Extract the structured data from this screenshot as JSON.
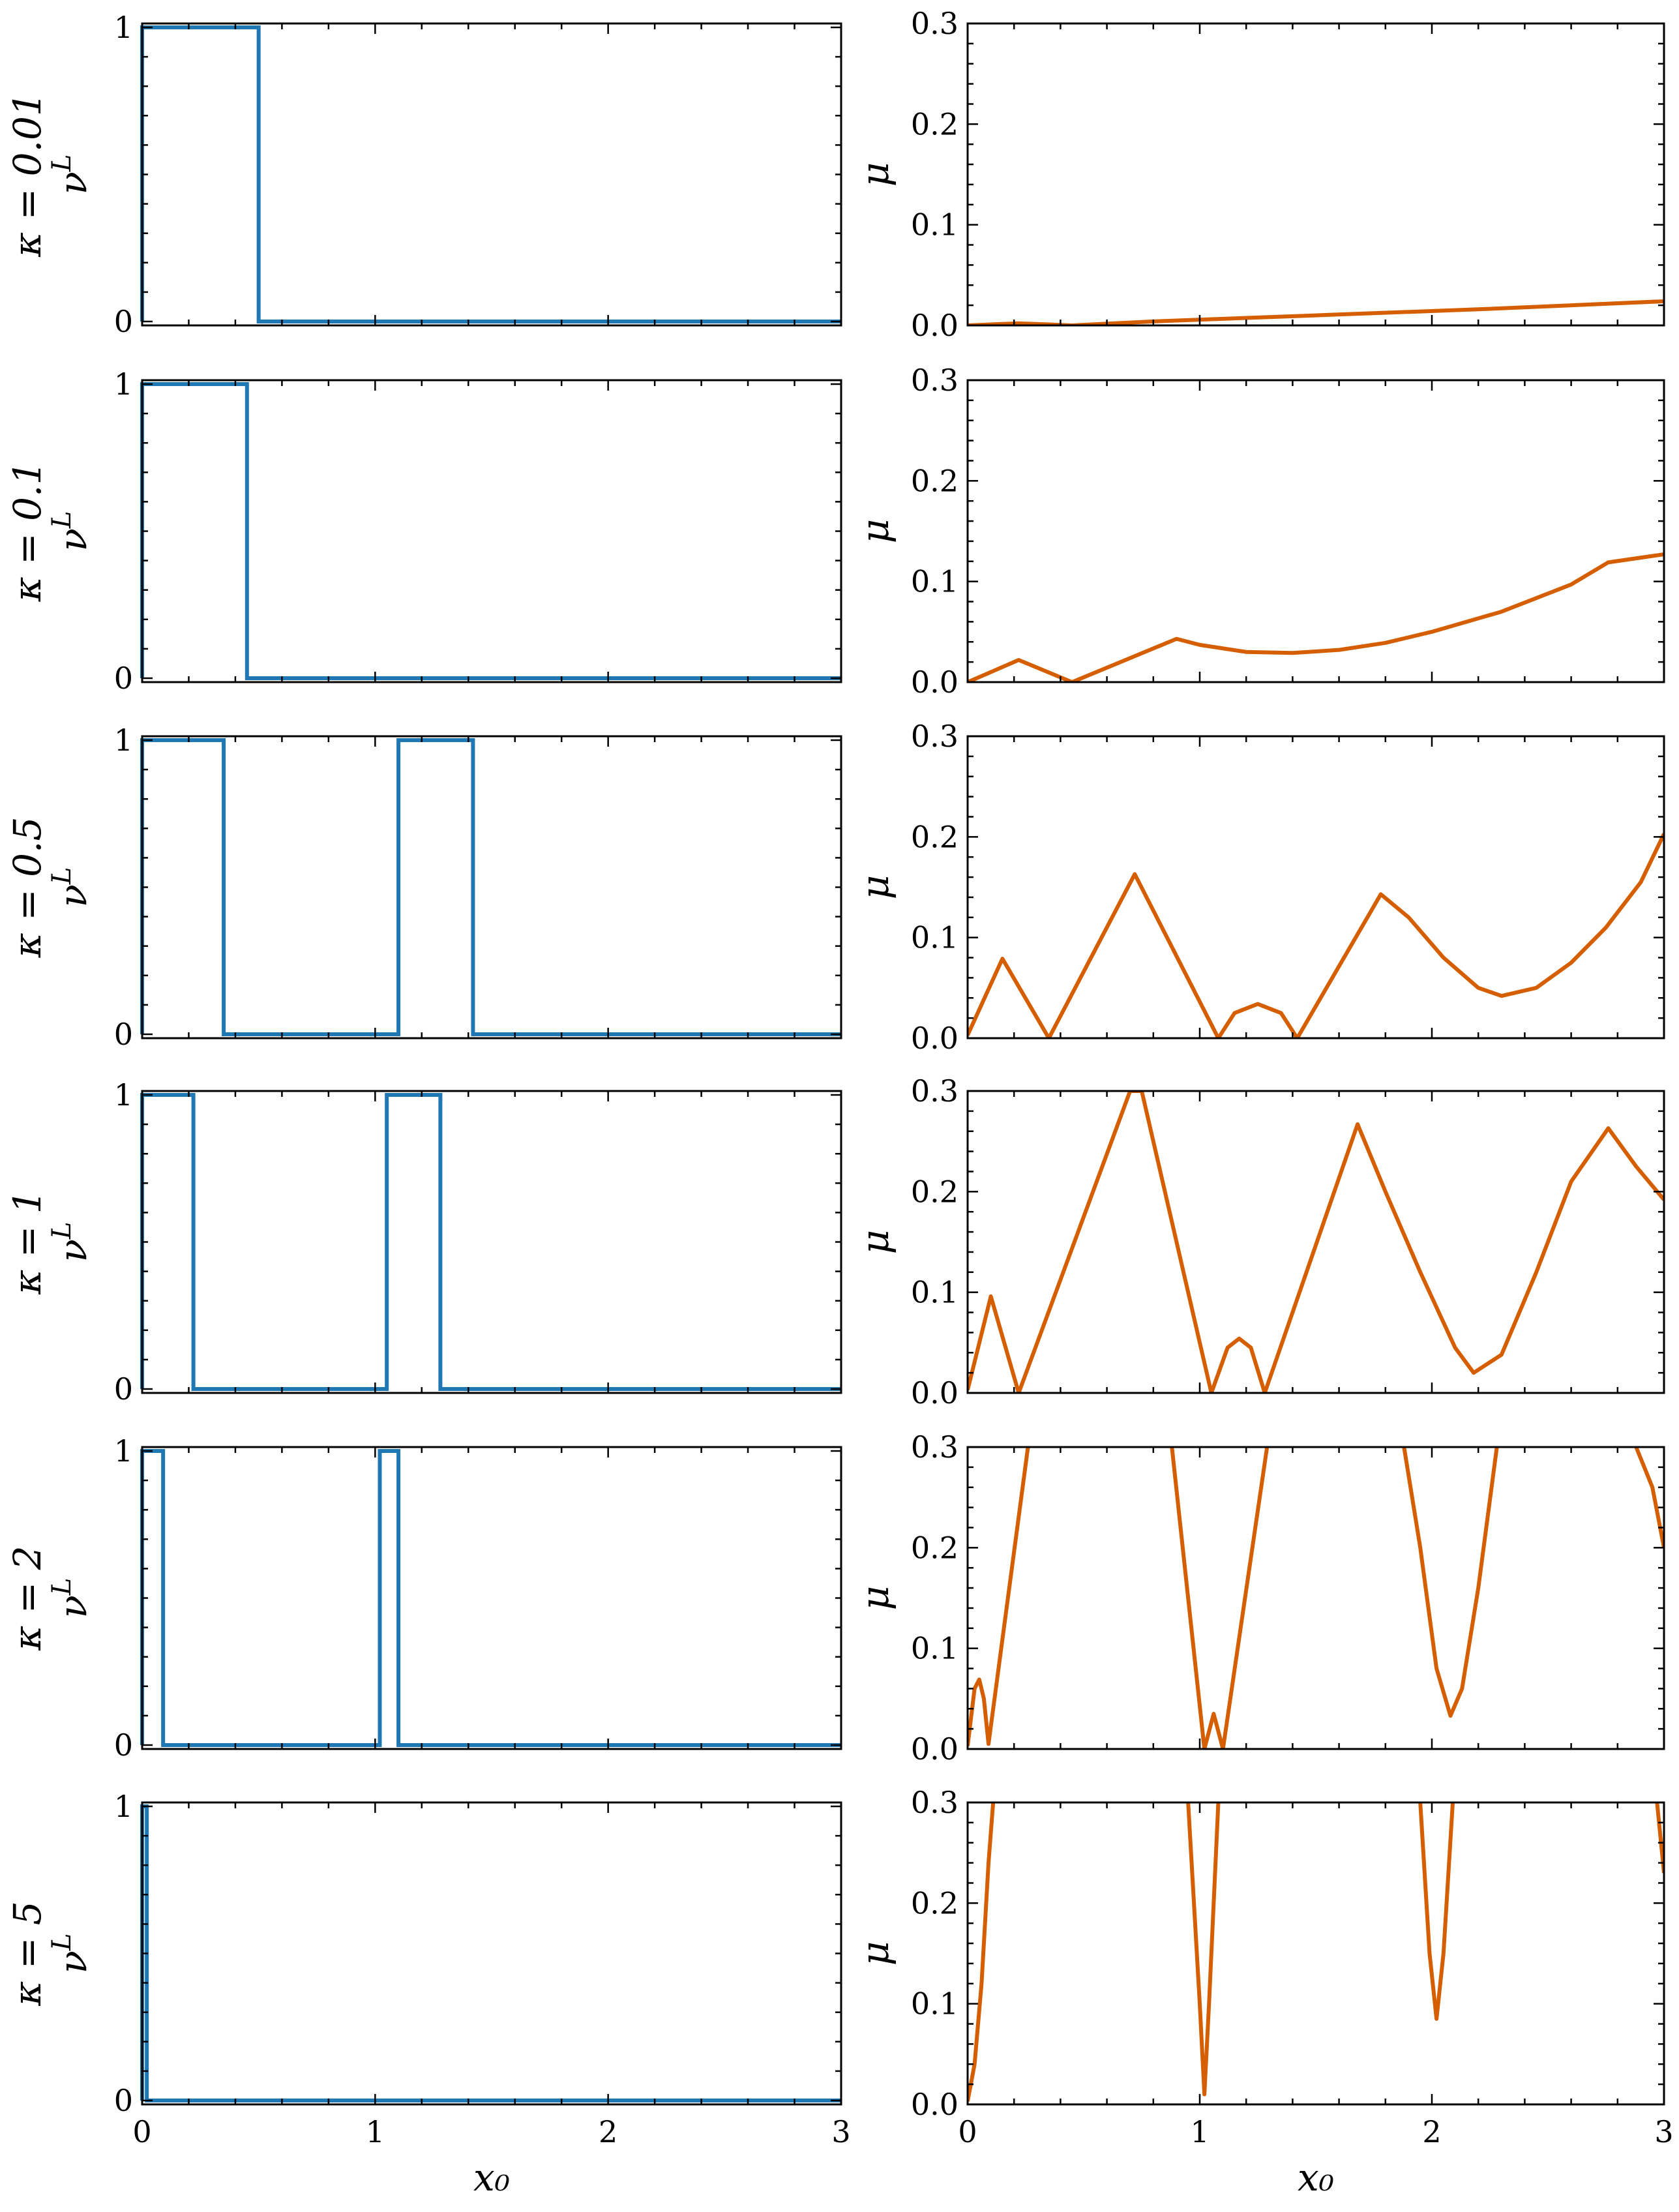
{
  "chart_data": {
    "type": "line",
    "xlabel": "x₀",
    "left_ylabel_symbol": "ν",
    "left_ylabel_superscript": "L",
    "right_ylabel": "μ",
    "xlim": [
      0,
      3
    ],
    "x_ticks": [
      "0",
      "1",
      "2",
      "3"
    ],
    "nu_ylim": [
      0,
      1
    ],
    "nu_ticks": [
      "0",
      "1"
    ],
    "mu_ylim": [
      0,
      0.3
    ],
    "mu_ticks": [
      "0.0",
      "0.1",
      "0.2",
      "0.3"
    ],
    "colors": {
      "nu": "#1f77b4",
      "mu": "#d55e00"
    },
    "rows": [
      {
        "kappa_label": "κ = 0.01",
        "nu_steps": [
          [
            0,
            0
          ],
          [
            0,
            1
          ],
          [
            0.5,
            1
          ],
          [
            0.5,
            0
          ],
          [
            3,
            0
          ]
        ],
        "mu_points": [
          [
            0,
            0
          ],
          [
            0.1,
            0.001
          ],
          [
            0.22,
            0.002
          ],
          [
            0.35,
            0.001
          ],
          [
            0.45,
            0
          ],
          [
            0.8,
            0.004
          ],
          [
            1.5,
            0.01
          ],
          [
            2.2,
            0.016
          ],
          [
            3,
            0.024
          ]
        ]
      },
      {
        "kappa_label": "κ = 0.1",
        "nu_steps": [
          [
            0,
            0
          ],
          [
            0,
            1
          ],
          [
            0.45,
            1
          ],
          [
            0.45,
            0
          ],
          [
            3,
            0
          ]
        ],
        "mu_points": [
          [
            0,
            0
          ],
          [
            0.22,
            0.022
          ],
          [
            0.45,
            0
          ],
          [
            0.9,
            0.043
          ],
          [
            1.0,
            0.037
          ],
          [
            1.2,
            0.03
          ],
          [
            1.4,
            0.029
          ],
          [
            1.6,
            0.032
          ],
          [
            1.8,
            0.039
          ],
          [
            2.0,
            0.05
          ],
          [
            2.3,
            0.07
          ],
          [
            2.6,
            0.097
          ],
          [
            2.76,
            0.119
          ],
          [
            3,
            0.127
          ]
        ]
      },
      {
        "kappa_label": "κ = 0.5",
        "nu_steps": [
          [
            0,
            0
          ],
          [
            0,
            1
          ],
          [
            0.35,
            1
          ],
          [
            0.35,
            0
          ],
          [
            1.1,
            0
          ],
          [
            1.1,
            1
          ],
          [
            1.42,
            1
          ],
          [
            1.42,
            0
          ],
          [
            3,
            0
          ]
        ],
        "mu_points": [
          [
            0,
            0.003
          ],
          [
            0.15,
            0.079
          ],
          [
            0.35,
            0
          ],
          [
            0.72,
            0.163
          ],
          [
            1.08,
            0
          ],
          [
            1.15,
            0.025
          ],
          [
            1.25,
            0.034
          ],
          [
            1.35,
            0.025
          ],
          [
            1.42,
            0
          ],
          [
            1.78,
            0.143
          ],
          [
            1.9,
            0.12
          ],
          [
            2.05,
            0.08
          ],
          [
            2.2,
            0.05
          ],
          [
            2.3,
            0.042
          ],
          [
            2.45,
            0.05
          ],
          [
            2.6,
            0.075
          ],
          [
            2.75,
            0.11
          ],
          [
            2.9,
            0.155
          ],
          [
            3,
            0.203
          ]
        ]
      },
      {
        "kappa_label": "κ = 1",
        "nu_steps": [
          [
            0,
            0
          ],
          [
            0,
            1
          ],
          [
            0.22,
            1
          ],
          [
            0.22,
            0
          ],
          [
            1.05,
            0
          ],
          [
            1.05,
            1
          ],
          [
            1.28,
            1
          ],
          [
            1.28,
            0
          ],
          [
            3,
            0
          ]
        ],
        "mu_points": [
          [
            0,
            0.003
          ],
          [
            0.1,
            0.096
          ],
          [
            0.22,
            0
          ],
          [
            0.7,
            0.3
          ],
          [
            0.75,
            0.3
          ],
          [
            1.05,
            0
          ],
          [
            1.12,
            0.045
          ],
          [
            1.17,
            0.054
          ],
          [
            1.22,
            0.045
          ],
          [
            1.28,
            0
          ],
          [
            1.68,
            0.267
          ],
          [
            1.8,
            0.2
          ],
          [
            1.95,
            0.12
          ],
          [
            2.1,
            0.045
          ],
          [
            2.18,
            0.02
          ],
          [
            2.3,
            0.038
          ],
          [
            2.45,
            0.12
          ],
          [
            2.6,
            0.21
          ],
          [
            2.76,
            0.263
          ],
          [
            2.88,
            0.225
          ],
          [
            3,
            0.192
          ]
        ]
      },
      {
        "kappa_label": "κ = 2",
        "nu_steps": [
          [
            0,
            0
          ],
          [
            0,
            1
          ],
          [
            0.09,
            1
          ],
          [
            0.09,
            0
          ],
          [
            1.02,
            0
          ],
          [
            1.02,
            1
          ],
          [
            1.1,
            1
          ],
          [
            1.1,
            0
          ],
          [
            3,
            0
          ]
        ],
        "mu_points": [
          [
            0,
            0.003
          ],
          [
            0.03,
            0.06
          ],
          [
            0.05,
            0.069
          ],
          [
            0.07,
            0.05
          ],
          [
            0.09,
            0.005
          ],
          [
            0.26,
            0.3
          ],
          [
            null,
            null
          ],
          [
            0.88,
            0.3
          ],
          [
            1.02,
            0
          ],
          [
            1.06,
            0.035
          ],
          [
            1.1,
            0
          ],
          [
            1.29,
            0.3
          ],
          [
            null,
            null
          ],
          [
            1.88,
            0.3
          ],
          [
            1.95,
            0.2
          ],
          [
            2.02,
            0.08
          ],
          [
            2.08,
            0.033
          ],
          [
            2.13,
            0.06
          ],
          [
            2.2,
            0.16
          ],
          [
            2.28,
            0.3
          ],
          [
            null,
            null
          ],
          [
            2.88,
            0.3
          ],
          [
            2.95,
            0.26
          ],
          [
            3,
            0.2
          ]
        ]
      },
      {
        "kappa_label": "κ = 5",
        "nu_steps": [
          [
            0,
            0
          ],
          [
            0,
            1
          ],
          [
            0.02,
            1
          ],
          [
            0.02,
            0
          ],
          [
            3,
            0
          ]
        ],
        "mu_points": [
          [
            0,
            0.003
          ],
          [
            0.03,
            0.04
          ],
          [
            0.06,
            0.12
          ],
          [
            0.09,
            0.24
          ],
          [
            0.11,
            0.3
          ],
          [
            null,
            null
          ],
          [
            0.95,
            0.3
          ],
          [
            1.0,
            0.1
          ],
          [
            1.02,
            0.01
          ],
          [
            1.04,
            0.1
          ],
          [
            1.08,
            0.3
          ],
          [
            null,
            null
          ],
          [
            1.95,
            0.3
          ],
          [
            1.99,
            0.15
          ],
          [
            2.02,
            0.085
          ],
          [
            2.05,
            0.15
          ],
          [
            2.09,
            0.3
          ],
          [
            null,
            null
          ],
          [
            2.97,
            0.3
          ],
          [
            3,
            0.23
          ]
        ]
      }
    ]
  }
}
